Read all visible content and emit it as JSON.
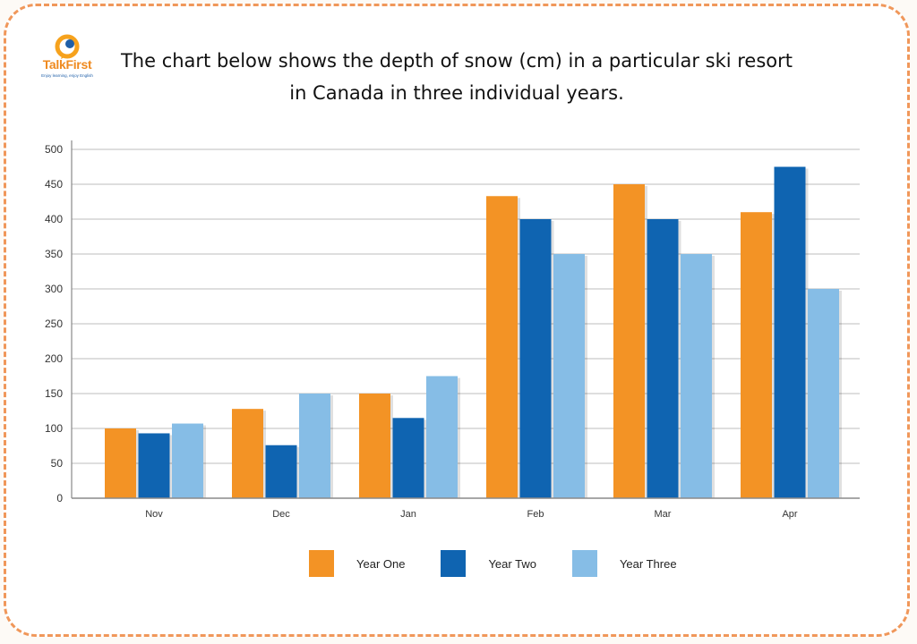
{
  "brand": {
    "name": "TalkFirst",
    "tagline": "Enjoy learning, enjoy English"
  },
  "title_lines": [
    "The chart below shows the depth of snow (cm) in a particular ski resort",
    "in Canada in three individual years."
  ],
  "colors": {
    "year_one": "#f39325",
    "year_two": "#0f64b1",
    "year_three": "#86bde6",
    "grid": "#c9c9c9",
    "axis": "#8a8a8a",
    "frame": "#f0975a"
  },
  "chart_data": {
    "type": "bar",
    "title": "The chart below shows the depth of snow (cm) in a particular ski resort in Canada in three individual years.",
    "xlabel": "",
    "ylabel": "",
    "ylim": [
      0,
      500
    ],
    "yticks": [
      0,
      50,
      100,
      150,
      200,
      250,
      300,
      350,
      400,
      450,
      500
    ],
    "grid": true,
    "legend_position": "bottom",
    "categories": [
      "Nov",
      "Dec",
      "Jan",
      "Feb",
      "Mar",
      "Apr"
    ],
    "series": [
      {
        "name": "Year One",
        "color": "#f39325",
        "values": [
          100,
          128,
          150,
          433,
          450,
          410
        ]
      },
      {
        "name": "Year Two",
        "color": "#0f64b1",
        "values": [
          93,
          76,
          115,
          400,
          400,
          475
        ]
      },
      {
        "name": "Year Three",
        "color": "#86bde6",
        "values": [
          107,
          150,
          175,
          350,
          350,
          300
        ]
      }
    ]
  }
}
